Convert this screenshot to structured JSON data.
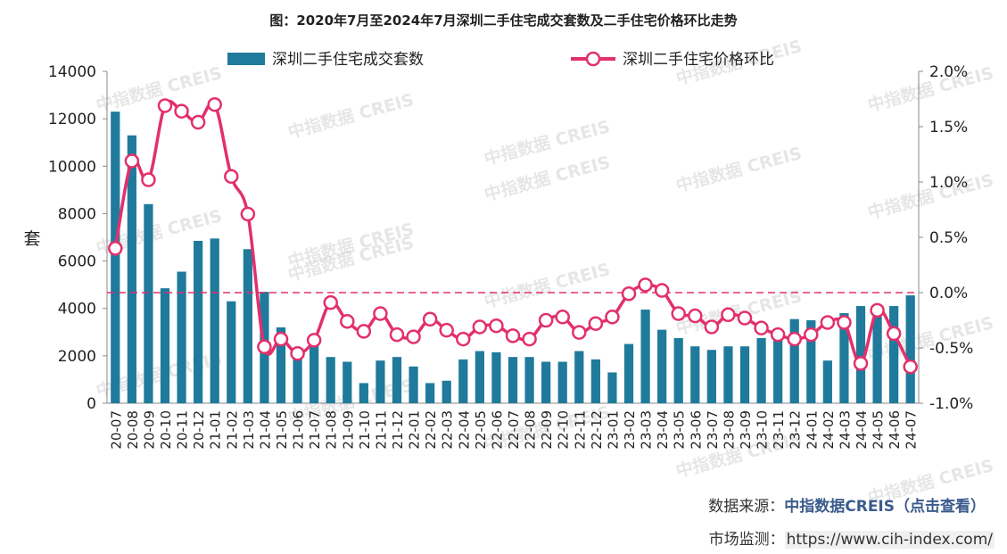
{
  "title": "图：2020年7月至2024年7月深圳二手住宅成交套数及二手住宅价格环比走势",
  "footer": {
    "source_label": "数据来源：",
    "source_name": "中指数据CREIS（点击查看）",
    "monitor_label": "市场监测：",
    "monitor_url": "https://www.cih-index.com/"
  },
  "watermark": "中指数据 CREIS",
  "colors": {
    "bar": "#1f7a9c",
    "line": "#e2306c",
    "zero_line": "#e2306c"
  },
  "chart_data": {
    "type": "bar+line",
    "categories": [
      "20-07",
      "20-08",
      "20-09",
      "20-10",
      "20-11",
      "20-12",
      "21-01",
      "21-02",
      "21-03",
      "21-04",
      "21-05",
      "21-06",
      "21-07",
      "21-08",
      "21-09",
      "21-10",
      "21-11",
      "21-12",
      "22-01",
      "22-02",
      "22-03",
      "22-04",
      "22-05",
      "22-06",
      "22-07",
      "22-08",
      "22-09",
      "22-10",
      "22-11",
      "22-12",
      "23-01",
      "23-02",
      "23-03",
      "23-04",
      "23-05",
      "23-06",
      "23-07",
      "23-08",
      "23-09",
      "23-10",
      "23-11",
      "23-12",
      "24-01",
      "24-02",
      "24-03",
      "24-04",
      "24-05",
      "24-06",
      "24-07"
    ],
    "series": [
      {
        "name": "深圳二手住宅成交套数",
        "type": "bar",
        "axis": "left",
        "values": [
          12300,
          11300,
          8400,
          4850,
          5550,
          6850,
          6950,
          4300,
          6500,
          4700,
          3200,
          2200,
          2600,
          1950,
          1750,
          850,
          1800,
          1950,
          1550,
          850,
          950,
          1850,
          2200,
          2150,
          1950,
          1950,
          1750,
          1750,
          2200,
          1850,
          1300,
          2500,
          3950,
          3100,
          2750,
          2400,
          2250,
          2400,
          2400,
          2750,
          2750,
          3550,
          3500,
          1800,
          3800,
          4100,
          3950,
          4100,
          4550
        ]
      },
      {
        "name": "深圳二手住宅价格环比",
        "type": "line",
        "axis": "right",
        "unit": "%",
        "values": [
          0.4,
          1.19,
          1.02,
          1.69,
          1.64,
          1.54,
          1.7,
          1.05,
          0.71,
          -0.49,
          -0.42,
          -0.55,
          -0.43,
          -0.09,
          -0.26,
          -0.35,
          -0.19,
          -0.38,
          -0.4,
          -0.24,
          -0.34,
          -0.42,
          -0.31,
          -0.3,
          -0.39,
          -0.42,
          -0.25,
          -0.22,
          -0.36,
          -0.28,
          -0.22,
          -0.01,
          0.07,
          0.02,
          -0.19,
          -0.21,
          -0.31,
          -0.2,
          -0.23,
          -0.32,
          -0.38,
          -0.42,
          -0.38,
          -0.27,
          -0.27,
          -0.64,
          -0.16,
          -0.37,
          -0.67
        ]
      }
    ],
    "left_axis": {
      "label": "套",
      "min": 0,
      "max": 14000,
      "ticks": [
        "0",
        "2000",
        "4000",
        "6000",
        "8000",
        "10000",
        "12000",
        "14000"
      ]
    },
    "right_axis": {
      "min": -1.0,
      "max": 2.0,
      "ticks": [
        "-1.0%",
        "-0.5%",
        "0.0%",
        "0.5%",
        "1.0%",
        "1.5%",
        "2.0%"
      ]
    },
    "reference_line": {
      "axis": "right",
      "value": 0.0,
      "style": "dashed"
    },
    "legend_position": "top",
    "grid": false
  }
}
